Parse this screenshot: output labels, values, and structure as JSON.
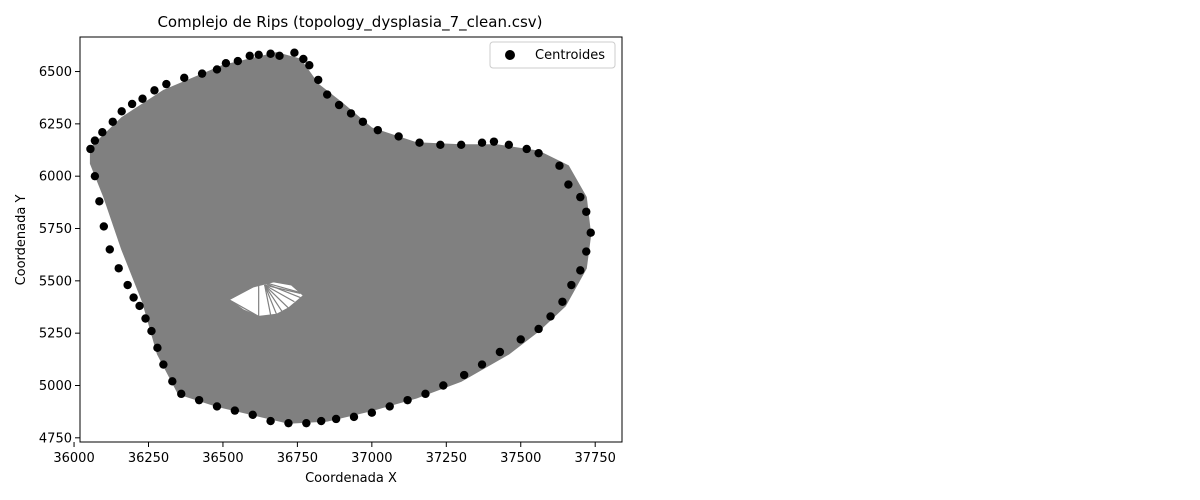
{
  "chart_data": {
    "type": "scatter",
    "title": "Complejo de Rips (topology_dysplasia_7_clean.csv)",
    "xlabel": "Coordenada X",
    "ylabel": "Coordenada Y",
    "xlim": [
      36020,
      37840
    ],
    "ylim": [
      4730,
      6665
    ],
    "xticks": [
      36000,
      36250,
      36500,
      36750,
      37000,
      37250,
      37500,
      37750
    ],
    "yticks": [
      4750,
      5000,
      5250,
      5500,
      5750,
      6000,
      6250,
      6500
    ],
    "grid": false,
    "legend": {
      "position": "top-right",
      "entries": [
        "Centroides"
      ]
    },
    "colors": {
      "points": "#000000",
      "complex": "#808080",
      "hole": "#ffffff"
    },
    "complex_outline": [
      [
        36055,
        6135
      ],
      [
        36160,
        6280
      ],
      [
        36300,
        6410
      ],
      [
        36500,
        6530
      ],
      [
        36680,
        6590
      ],
      [
        36760,
        6560
      ],
      [
        36820,
        6440
      ],
      [
        36900,
        6350
      ],
      [
        37000,
        6230
      ],
      [
        37150,
        6160
      ],
      [
        37300,
        6150
      ],
      [
        37420,
        6150
      ],
      [
        37560,
        6120
      ],
      [
        37660,
        6050
      ],
      [
        37720,
        5900
      ],
      [
        37735,
        5720
      ],
      [
        37720,
        5560
      ],
      [
        37650,
        5380
      ],
      [
        37560,
        5260
      ],
      [
        37460,
        5150
      ],
      [
        37300,
        5020
      ],
      [
        37150,
        4940
      ],
      [
        37000,
        4880
      ],
      [
        36850,
        4830
      ],
      [
        36720,
        4820
      ],
      [
        36600,
        4860
      ],
      [
        36480,
        4900
      ],
      [
        36350,
        4960
      ],
      [
        36280,
        5150
      ],
      [
        36230,
        5400
      ],
      [
        36160,
        5650
      ],
      [
        36100,
        5900
      ],
      [
        36055,
        6060
      ]
    ],
    "hole": [
      [
        36520,
        5410
      ],
      [
        36570,
        5360
      ],
      [
        36620,
        5330
      ],
      [
        36680,
        5340
      ],
      [
        36720,
        5370
      ],
      [
        36770,
        5430
      ],
      [
        36730,
        5480
      ],
      [
        36670,
        5495
      ],
      [
        36600,
        5470
      ]
    ],
    "hole_edges": [
      [
        [
          36640,
          5480
        ],
        [
          36760,
          5440
        ]
      ],
      [
        [
          36640,
          5480
        ],
        [
          36740,
          5400
        ]
      ],
      [
        [
          36640,
          5480
        ],
        [
          36720,
          5370
        ]
      ],
      [
        [
          36640,
          5480
        ],
        [
          36700,
          5350
        ]
      ],
      [
        [
          36640,
          5480
        ],
        [
          36680,
          5340
        ]
      ],
      [
        [
          36640,
          5480
        ],
        [
          36660,
          5338
        ]
      ],
      [
        [
          36620,
          5500
        ],
        [
          36770,
          5440
        ]
      ],
      [
        [
          36620,
          5500
        ],
        [
          36760,
          5420
        ]
      ],
      [
        [
          36620,
          5330
        ],
        [
          36620,
          5485
        ]
      ],
      [
        [
          36520,
          5410
        ],
        [
          36620,
          5330
        ]
      ],
      [
        [
          36520,
          5410
        ],
        [
          36600,
          5470
        ]
      ],
      [
        [
          36540,
          5380
        ],
        [
          36580,
          5345
        ]
      ]
    ],
    "points": {
      "x": [
        36055,
        36070,
        36095,
        36130,
        36160,
        36195,
        36230,
        36270,
        36310,
        36370,
        36430,
        36480,
        36510,
        36550,
        36590,
        36620,
        36660,
        36690,
        36740,
        36770,
        36790,
        36820,
        36850,
        36890,
        36930,
        36970,
        37020,
        37090,
        37160,
        37230,
        37300,
        37370,
        37410,
        37460,
        37520,
        37560,
        37630,
        37660,
        37700,
        37720,
        37735,
        37720,
        37700,
        37670,
        37640,
        37600,
        37560,
        37500,
        37430,
        37370,
        37310,
        37240,
        37180,
        37120,
        37060,
        37000,
        36940,
        36880,
        36830,
        36780,
        36720,
        36660,
        36600,
        36540,
        36480,
        36420,
        36360,
        36330,
        36300,
        36280,
        36260,
        36240,
        36220,
        36200,
        36180,
        36150,
        36120,
        36100,
        36085,
        36070
      ],
      "y": [
        6130,
        6170,
        6210,
        6260,
        6310,
        6345,
        6370,
        6410,
        6440,
        6470,
        6490,
        6510,
        6540,
        6550,
        6575,
        6580,
        6585,
        6575,
        6590,
        6560,
        6530,
        6460,
        6390,
        6340,
        6300,
        6260,
        6220,
        6190,
        6160,
        6150,
        6150,
        6160,
        6165,
        6150,
        6130,
        6110,
        6050,
        5960,
        5900,
        5830,
        5730,
        5640,
        5550,
        5480,
        5400,
        5330,
        5270,
        5220,
        5160,
        5100,
        5050,
        5000,
        4960,
        4930,
        4900,
        4870,
        4850,
        4840,
        4830,
        4820,
        4820,
        4830,
        4860,
        4880,
        4900,
        4930,
        4960,
        5020,
        5100,
        5180,
        5260,
        5320,
        5380,
        5420,
        5480,
        5560,
        5650,
        5760,
        5880,
        6000
      ]
    }
  }
}
